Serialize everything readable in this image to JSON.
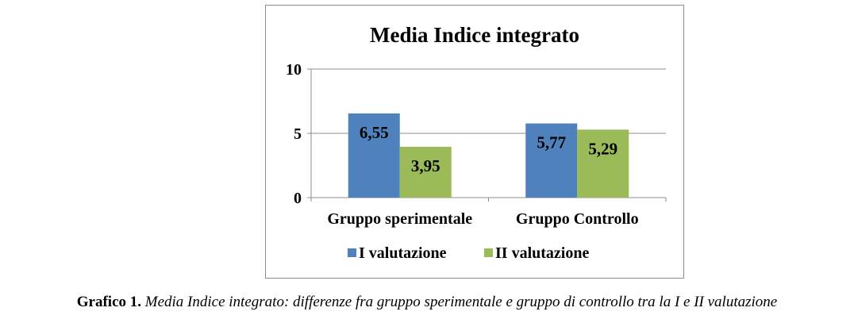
{
  "chart_data": {
    "type": "bar",
    "title": "Media Indice integrato",
    "categories": [
      "Gruppo sperimentale",
      "Gruppo Controllo"
    ],
    "series": [
      {
        "name": "I valutazione",
        "values": [
          6.55,
          5.77
        ],
        "labels": [
          "6,55",
          "5,77"
        ],
        "color": "#4f81bd"
      },
      {
        "name": "II valutazione",
        "values": [
          3.95,
          5.29
        ],
        "labels": [
          "3,95",
          "5,29"
        ],
        "color": "#9bbb59"
      }
    ],
    "ylim": [
      0,
      10
    ],
    "yticks": [
      0,
      5,
      10
    ],
    "ytick_labels": [
      "0",
      "5",
      "10"
    ],
    "grid": true,
    "legend_position": "bottom"
  },
  "caption": {
    "label": "Grafico 1.",
    "text": "Media Indice integrato: differenze fra gruppo sperimentale e gruppo di controllo tra la I e II valutazione"
  }
}
